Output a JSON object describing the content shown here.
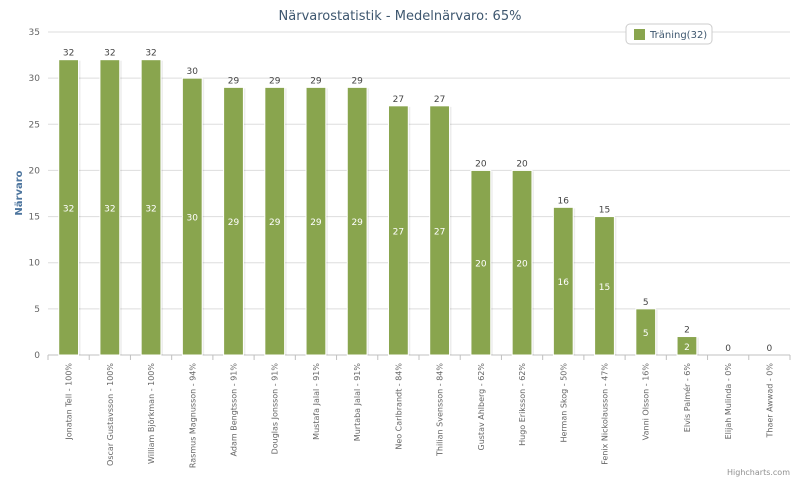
{
  "chart_data": {
    "type": "bar",
    "title": "Närvarostatistik - Medelnärvaro: 65%",
    "ylabel": "Närvaro",
    "ylim": [
      0,
      35
    ],
    "yticks": [
      0,
      5,
      10,
      15,
      20,
      25,
      30,
      35
    ],
    "grid": true,
    "legend_position": "top-right",
    "categories": [
      "Jonatan Tell - 100%",
      "Oscar Gustavsson - 100%",
      "William Björkman - 100%",
      "Rasmus Magnusson - 94%",
      "Adam Bengtsson - 91%",
      "Douglas Jonsson - 91%",
      "Mustafa Jalal - 91%",
      "Murtaba Jalal - 91%",
      "Neo Carlbrandt - 84%",
      "Thilian Svensson - 84%",
      "Gustav Ahlberg - 62%",
      "Hugo Eriksson - 62%",
      "Herman Skog - 50%",
      "Fenix Nickolausson - 47%",
      "Vanni Olsson - 16%",
      "Elvis Palmér - 6%",
      "Elijah Mulinda - 0%",
      "Thaer Awwad - 0%"
    ],
    "series": [
      {
        "name": "Träning(32)",
        "color": "#89a54e",
        "values": [
          32,
          32,
          32,
          30,
          29,
          29,
          29,
          29,
          27,
          27,
          20,
          20,
          16,
          15,
          5,
          2,
          0,
          0
        ]
      }
    ],
    "credits": "Highcharts.com"
  }
}
